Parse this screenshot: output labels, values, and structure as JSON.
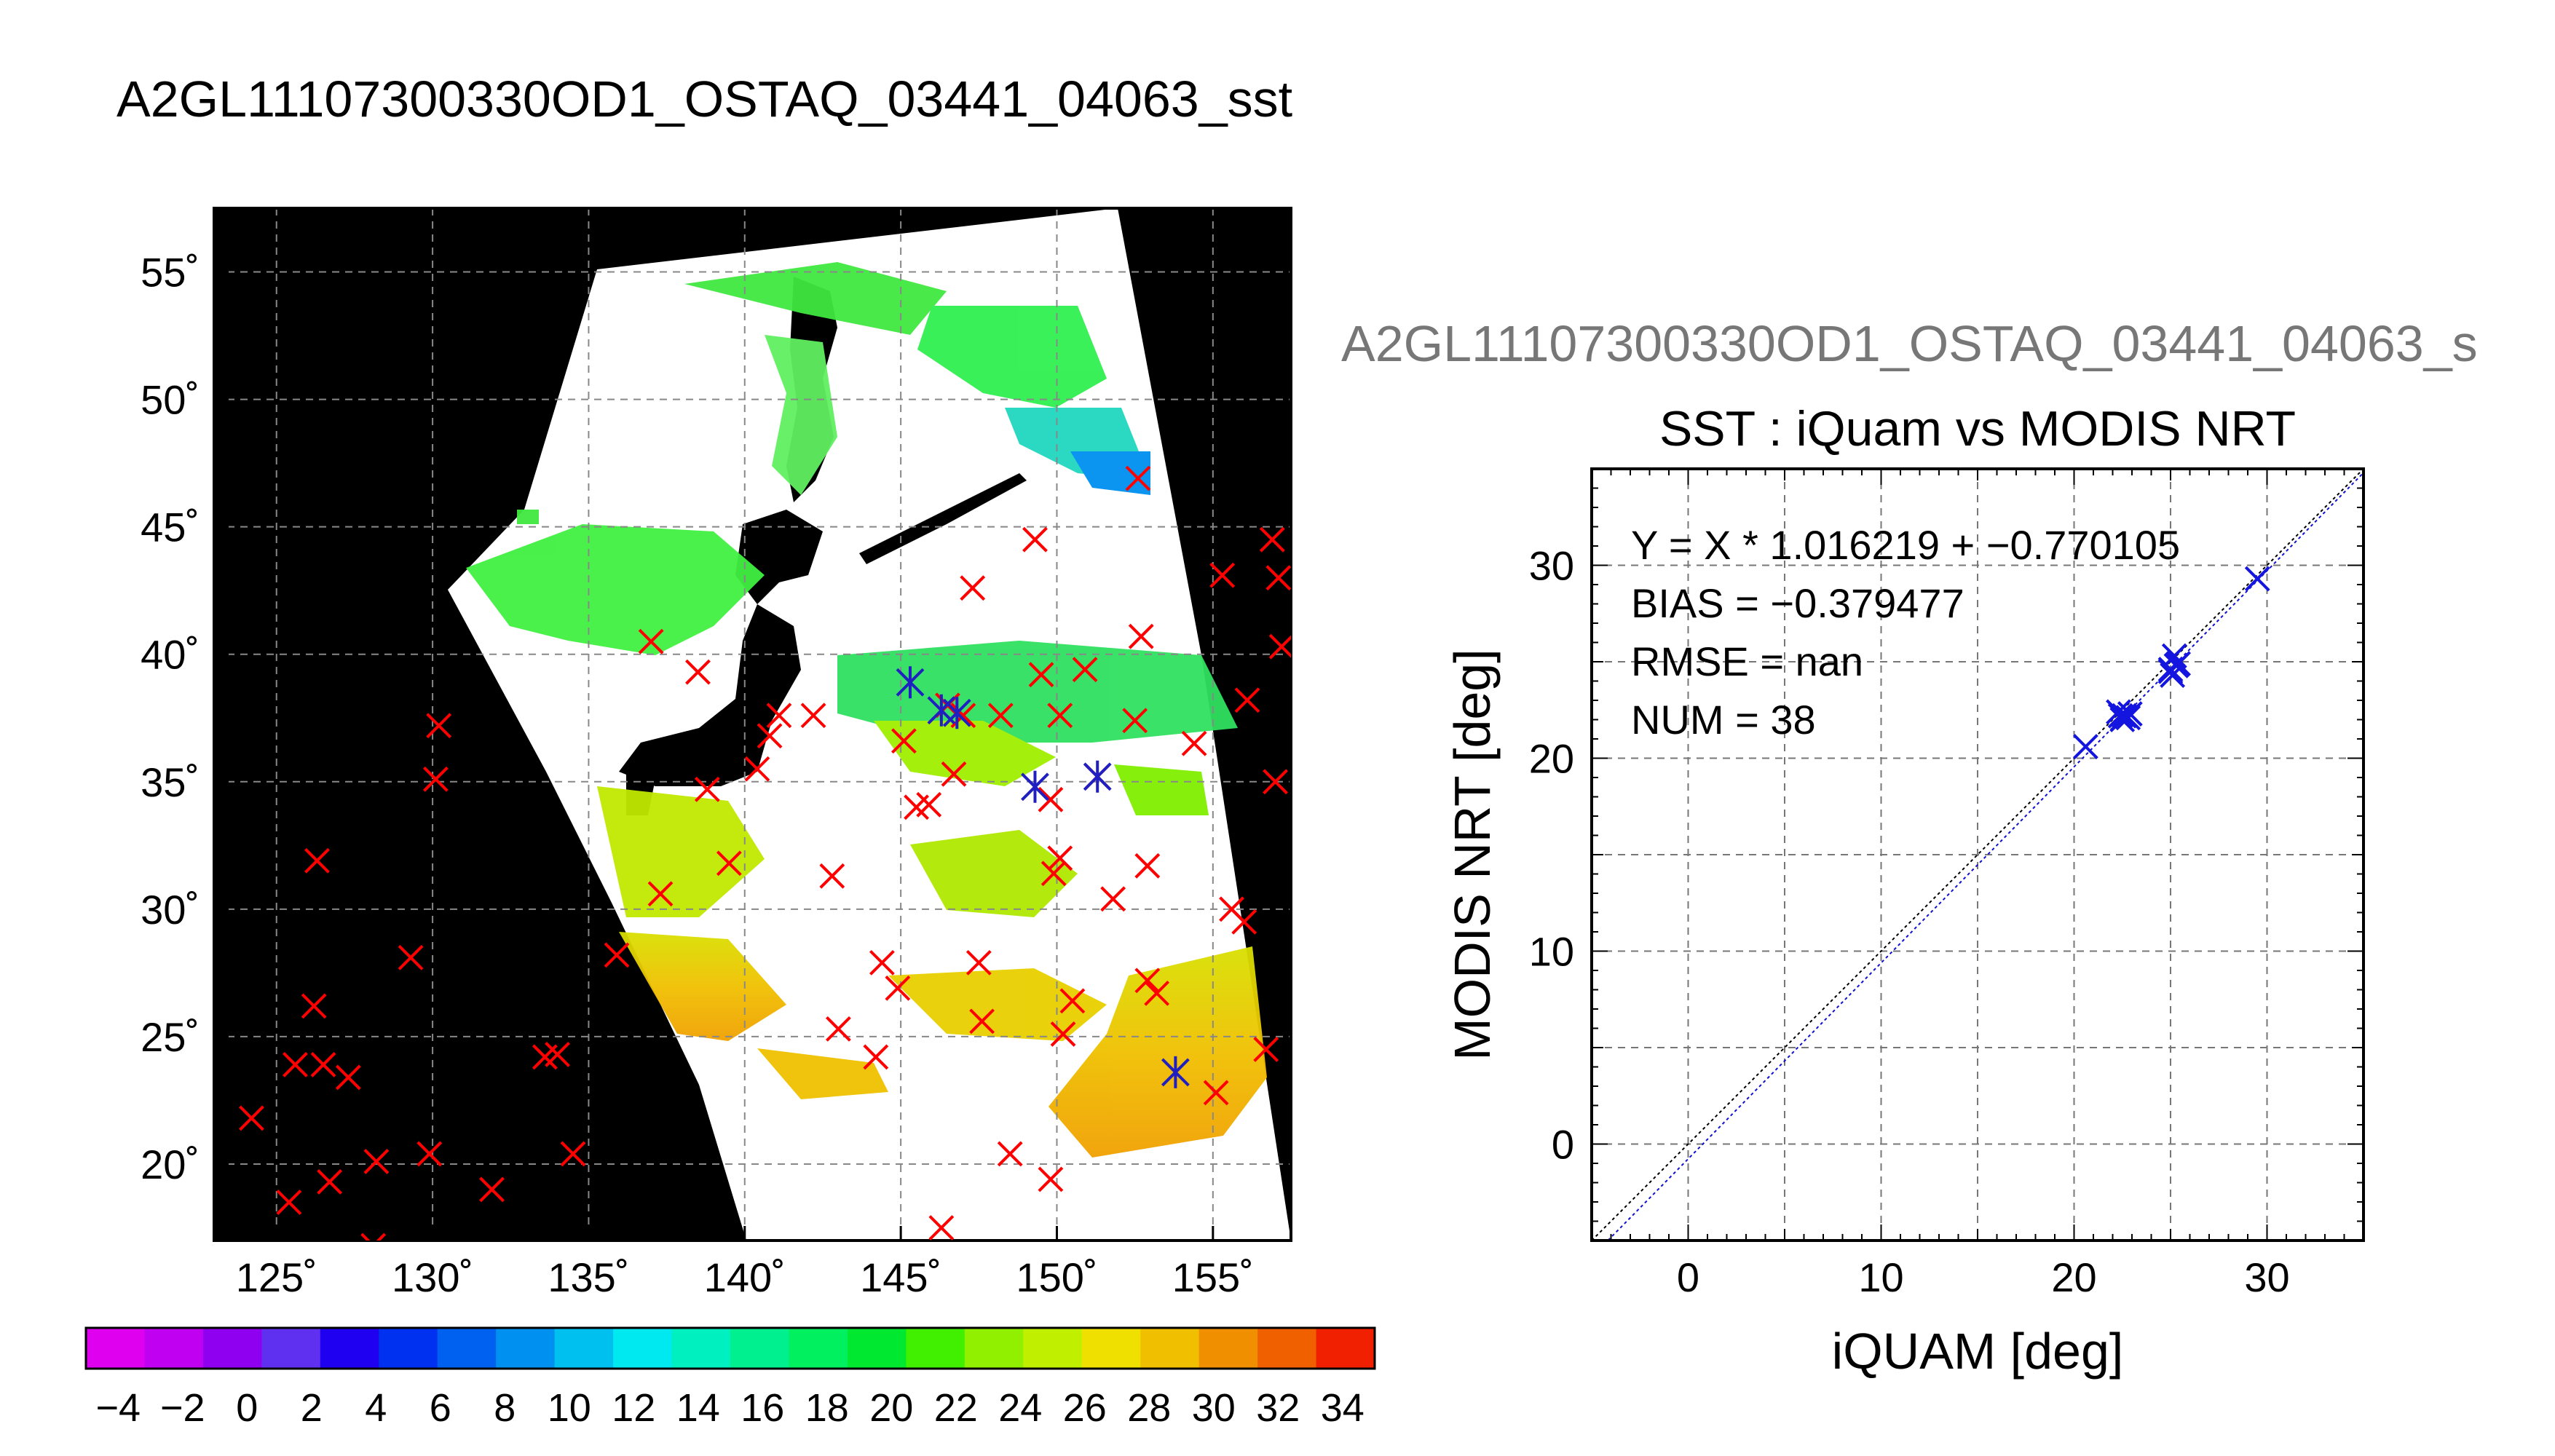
{
  "page": {
    "main_title": "A2GL11107300330OD1_OSTAQ_03441_04063_sst"
  },
  "chart_data": [
    {
      "type": "map",
      "title": "A2GL11107300330OD1_OSTAQ_03441_04063_sst",
      "x_ticks": [
        "125˚",
        "130˚",
        "135˚",
        "140˚",
        "145˚",
        "150˚",
        "155˚"
      ],
      "x_tick_values": [
        125,
        130,
        135,
        140,
        145,
        150,
        155
      ],
      "y_ticks": [
        "55˚",
        "50˚",
        "45˚",
        "40˚",
        "35˚",
        "30˚",
        "25˚",
        "20˚"
      ],
      "y_tick_values": [
        55,
        50,
        45,
        40,
        35,
        30,
        25,
        20
      ],
      "xlim": [
        123,
        157.5
      ],
      "ylim": [
        17,
        57.5
      ],
      "grid": true,
      "colorbar": {
        "min": -5,
        "max": 35,
        "tick_labels": [
          "-4",
          "-2",
          "0",
          "2",
          "4",
          "6",
          "8",
          "10",
          "12",
          "14",
          "16",
          "18",
          "20",
          "22",
          "24",
          "26",
          "28",
          "30",
          "32",
          "34"
        ],
        "tick_values": [
          -4,
          -2,
          0,
          2,
          4,
          6,
          8,
          10,
          12,
          14,
          16,
          18,
          20,
          22,
          24,
          26,
          28,
          30,
          32,
          34
        ],
        "colors": [
          "#e000f0",
          "#c000f0",
          "#9000f0",
          "#6030f0",
          "#2000f0",
          "#0030f0",
          "#0060f0",
          "#0090f0",
          "#00c0f0",
          "#00e8f0",
          "#00f0c0",
          "#00f090",
          "#00f060",
          "#00e830",
          "#40f000",
          "#90f000",
          "#c0f000",
          "#f0e000",
          "#f0c000",
          "#f09000",
          "#f06000",
          "#f02000"
        ]
      },
      "red_markers": [
        [
          124.2,
          21.8
        ],
        [
          125.4,
          18.5
        ],
        [
          125.6,
          23.9
        ],
        [
          126.2,
          26.2
        ],
        [
          126.5,
          23.9
        ],
        [
          126.7,
          19.3
        ],
        [
          126.3,
          31.9
        ],
        [
          127.3,
          23.4
        ],
        [
          128.2,
          20.1
        ],
        [
          128.1,
          16.8
        ],
        [
          129.3,
          28.1
        ],
        [
          129.9,
          20.4
        ],
        [
          130.2,
          37.2
        ],
        [
          130.1,
          35.1
        ],
        [
          131.9,
          19.0
        ],
        [
          133.6,
          24.2
        ],
        [
          134.0,
          24.3
        ],
        [
          134.5,
          20.4
        ],
        [
          135.9,
          28.2
        ],
        [
          137.0,
          40.5
        ],
        [
          137.3,
          30.6
        ],
        [
          138.5,
          39.3
        ],
        [
          138.8,
          34.7
        ],
        [
          139.5,
          31.8
        ],
        [
          140.4,
          35.5
        ],
        [
          140.8,
          36.8
        ],
        [
          141.1,
          37.6
        ],
        [
          142.2,
          37.6
        ],
        [
          142.8,
          31.3
        ],
        [
          143.0,
          25.3
        ],
        [
          144.2,
          24.2
        ],
        [
          144.4,
          27.9
        ],
        [
          144.9,
          26.9
        ],
        [
          145.1,
          36.6
        ],
        [
          145.5,
          34.0
        ],
        [
          145.9,
          34.1
        ],
        [
          146.3,
          17.5
        ],
        [
          146.5,
          38.0
        ],
        [
          146.7,
          35.3
        ],
        [
          147.0,
          37.6
        ],
        [
          147.3,
          42.6
        ],
        [
          147.5,
          27.9
        ],
        [
          147.6,
          25.6
        ],
        [
          148.2,
          37.6
        ],
        [
          148.5,
          20.4
        ],
        [
          149.3,
          44.5
        ],
        [
          149.5,
          39.2
        ],
        [
          149.8,
          34.3
        ],
        [
          149.8,
          19.4
        ],
        [
          149.9,
          31.4
        ],
        [
          150.1,
          37.6
        ],
        [
          150.1,
          32.0
        ],
        [
          150.2,
          25.1
        ],
        [
          150.5,
          26.4
        ],
        [
          150.9,
          39.4
        ],
        [
          151.3,
          35.2
        ],
        [
          151.8,
          30.4
        ],
        [
          152.5,
          37.4
        ],
        [
          152.7,
          40.7
        ],
        [
          152.6,
          46.9
        ],
        [
          152.9,
          31.7
        ],
        [
          152.9,
          27.2
        ],
        [
          153.2,
          26.7
        ],
        [
          154.4,
          36.5
        ],
        [
          155.1,
          22.8
        ],
        [
          155.3,
          43.1
        ],
        [
          155.6,
          30.0
        ],
        [
          156.0,
          29.5
        ],
        [
          156.1,
          38.2
        ],
        [
          156.7,
          24.5
        ],
        [
          156.9,
          44.5
        ],
        [
          157.1,
          43.0
        ],
        [
          157.2,
          40.3
        ],
        [
          157.0,
          35.0
        ]
      ],
      "blue_markers": [
        [
          145.3,
          38.9
        ],
        [
          146.3,
          37.8
        ],
        [
          146.8,
          37.7
        ],
        [
          149.3,
          34.8
        ],
        [
          151.3,
          35.2
        ],
        [
          153.8,
          23.6
        ]
      ]
    },
    {
      "type": "scatter",
      "figure_title": "A2GL11107300330OD1_OSTAQ_03441_04063_s",
      "title": "SST : iQuam vs MODIS NRT",
      "xlabel": "iQUAM [deg]",
      "ylabel": "MODIS NRT [deg]",
      "xlim": [
        -5,
        35
      ],
      "ylim": [
        -5,
        35
      ],
      "x_ticks": [
        "0",
        "10",
        "20",
        "30"
      ],
      "x_tick_values": [
        0,
        10,
        20,
        30
      ],
      "y_ticks": [
        "0",
        "10",
        "20",
        "30"
      ],
      "y_tick_values": [
        0,
        10,
        20,
        30
      ],
      "grid": true,
      "annotations": [
        "Y = X * 1.016219 + −0.770105",
        "BIAS = −0.379477",
        "RMSE = nan",
        "NUM = 38"
      ],
      "regression": {
        "slope": 1.016219,
        "intercept": -0.770105
      },
      "points": [
        [
          20.6,
          20.6
        ],
        [
          22.3,
          22.4
        ],
        [
          22.6,
          22.2
        ],
        [
          22.8,
          22.1
        ],
        [
          22.5,
          22.0
        ],
        [
          22.9,
          22.3
        ],
        [
          22.4,
          22.2
        ],
        [
          25.0,
          24.6
        ],
        [
          25.2,
          25.3
        ],
        [
          25.3,
          24.8
        ],
        [
          25.1,
          24.3
        ],
        [
          25.4,
          24.9
        ],
        [
          25.0,
          24.5
        ],
        [
          29.5,
          29.3
        ]
      ]
    }
  ]
}
